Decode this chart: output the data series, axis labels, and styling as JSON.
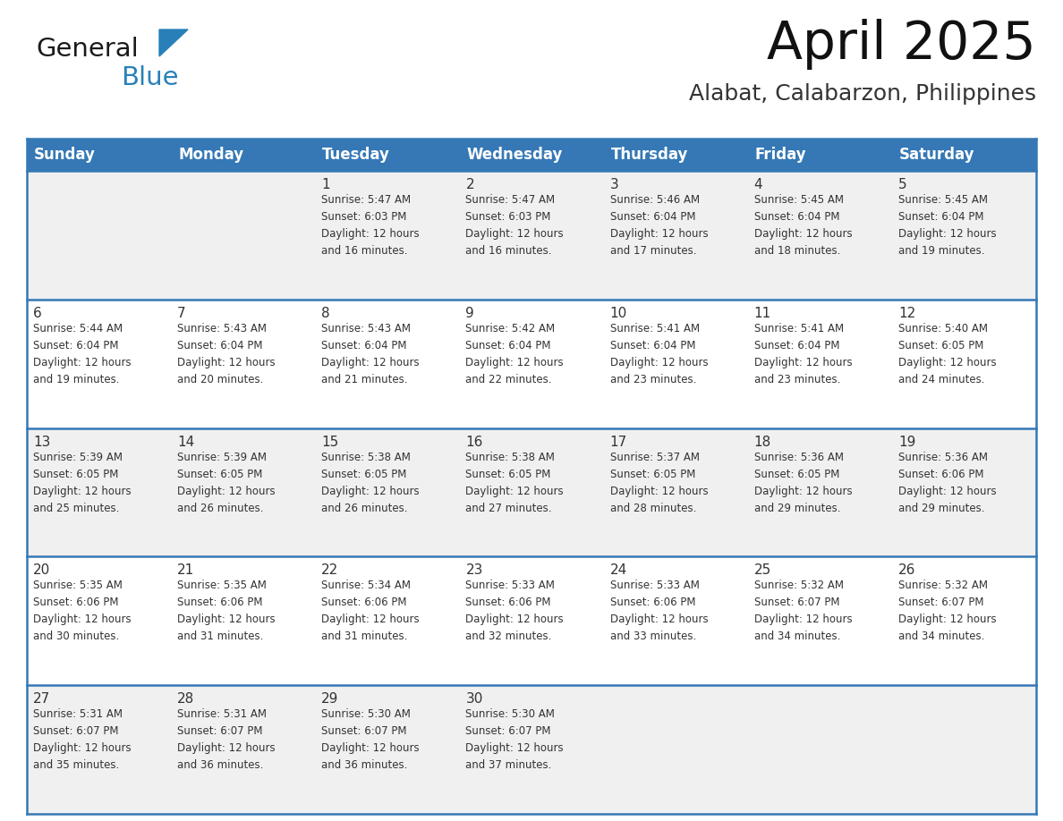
{
  "title": "April 2025",
  "subtitle": "Alabat, Calabarzon, Philippines",
  "header_bg_color": "#3578b5",
  "header_text_color": "#ffffff",
  "days_of_week": [
    "Sunday",
    "Monday",
    "Tuesday",
    "Wednesday",
    "Thursday",
    "Friday",
    "Saturday"
  ],
  "row_bg_even": "#f0f0f0",
  "row_bg_odd": "#ffffff",
  "cell_text_color": "#333333",
  "grid_line_color": "#3578b5",
  "title_color": "#111111",
  "subtitle_color": "#333333",
  "calendar_data": [
    [
      {
        "day": "",
        "info": ""
      },
      {
        "day": "",
        "info": ""
      },
      {
        "day": "1",
        "info": "Sunrise: 5:47 AM\nSunset: 6:03 PM\nDaylight: 12 hours\nand 16 minutes."
      },
      {
        "day": "2",
        "info": "Sunrise: 5:47 AM\nSunset: 6:03 PM\nDaylight: 12 hours\nand 16 minutes."
      },
      {
        "day": "3",
        "info": "Sunrise: 5:46 AM\nSunset: 6:04 PM\nDaylight: 12 hours\nand 17 minutes."
      },
      {
        "day": "4",
        "info": "Sunrise: 5:45 AM\nSunset: 6:04 PM\nDaylight: 12 hours\nand 18 minutes."
      },
      {
        "day": "5",
        "info": "Sunrise: 5:45 AM\nSunset: 6:04 PM\nDaylight: 12 hours\nand 19 minutes."
      }
    ],
    [
      {
        "day": "6",
        "info": "Sunrise: 5:44 AM\nSunset: 6:04 PM\nDaylight: 12 hours\nand 19 minutes."
      },
      {
        "day": "7",
        "info": "Sunrise: 5:43 AM\nSunset: 6:04 PM\nDaylight: 12 hours\nand 20 minutes."
      },
      {
        "day": "8",
        "info": "Sunrise: 5:43 AM\nSunset: 6:04 PM\nDaylight: 12 hours\nand 21 minutes."
      },
      {
        "day": "9",
        "info": "Sunrise: 5:42 AM\nSunset: 6:04 PM\nDaylight: 12 hours\nand 22 minutes."
      },
      {
        "day": "10",
        "info": "Sunrise: 5:41 AM\nSunset: 6:04 PM\nDaylight: 12 hours\nand 23 minutes."
      },
      {
        "day": "11",
        "info": "Sunrise: 5:41 AM\nSunset: 6:04 PM\nDaylight: 12 hours\nand 23 minutes."
      },
      {
        "day": "12",
        "info": "Sunrise: 5:40 AM\nSunset: 6:05 PM\nDaylight: 12 hours\nand 24 minutes."
      }
    ],
    [
      {
        "day": "13",
        "info": "Sunrise: 5:39 AM\nSunset: 6:05 PM\nDaylight: 12 hours\nand 25 minutes."
      },
      {
        "day": "14",
        "info": "Sunrise: 5:39 AM\nSunset: 6:05 PM\nDaylight: 12 hours\nand 26 minutes."
      },
      {
        "day": "15",
        "info": "Sunrise: 5:38 AM\nSunset: 6:05 PM\nDaylight: 12 hours\nand 26 minutes."
      },
      {
        "day": "16",
        "info": "Sunrise: 5:38 AM\nSunset: 6:05 PM\nDaylight: 12 hours\nand 27 minutes."
      },
      {
        "day": "17",
        "info": "Sunrise: 5:37 AM\nSunset: 6:05 PM\nDaylight: 12 hours\nand 28 minutes."
      },
      {
        "day": "18",
        "info": "Sunrise: 5:36 AM\nSunset: 6:05 PM\nDaylight: 12 hours\nand 29 minutes."
      },
      {
        "day": "19",
        "info": "Sunrise: 5:36 AM\nSunset: 6:06 PM\nDaylight: 12 hours\nand 29 minutes."
      }
    ],
    [
      {
        "day": "20",
        "info": "Sunrise: 5:35 AM\nSunset: 6:06 PM\nDaylight: 12 hours\nand 30 minutes."
      },
      {
        "day": "21",
        "info": "Sunrise: 5:35 AM\nSunset: 6:06 PM\nDaylight: 12 hours\nand 31 minutes."
      },
      {
        "day": "22",
        "info": "Sunrise: 5:34 AM\nSunset: 6:06 PM\nDaylight: 12 hours\nand 31 minutes."
      },
      {
        "day": "23",
        "info": "Sunrise: 5:33 AM\nSunset: 6:06 PM\nDaylight: 12 hours\nand 32 minutes."
      },
      {
        "day": "24",
        "info": "Sunrise: 5:33 AM\nSunset: 6:06 PM\nDaylight: 12 hours\nand 33 minutes."
      },
      {
        "day": "25",
        "info": "Sunrise: 5:32 AM\nSunset: 6:07 PM\nDaylight: 12 hours\nand 34 minutes."
      },
      {
        "day": "26",
        "info": "Sunrise: 5:32 AM\nSunset: 6:07 PM\nDaylight: 12 hours\nand 34 minutes."
      }
    ],
    [
      {
        "day": "27",
        "info": "Sunrise: 5:31 AM\nSunset: 6:07 PM\nDaylight: 12 hours\nand 35 minutes."
      },
      {
        "day": "28",
        "info": "Sunrise: 5:31 AM\nSunset: 6:07 PM\nDaylight: 12 hours\nand 36 minutes."
      },
      {
        "day": "29",
        "info": "Sunrise: 5:30 AM\nSunset: 6:07 PM\nDaylight: 12 hours\nand 36 minutes."
      },
      {
        "day": "30",
        "info": "Sunrise: 5:30 AM\nSunset: 6:07 PM\nDaylight: 12 hours\nand 37 minutes."
      },
      {
        "day": "",
        "info": ""
      },
      {
        "day": "",
        "info": ""
      },
      {
        "day": "",
        "info": ""
      }
    ]
  ],
  "logo_text_general": "General",
  "logo_text_blue": "Blue",
  "logo_color_general": "#1a1a1a",
  "logo_color_blue": "#2980b9",
  "logo_triangle_color": "#2980b9"
}
